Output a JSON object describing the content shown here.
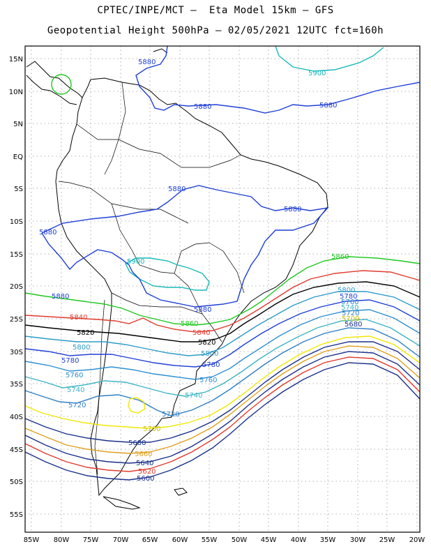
{
  "title": {
    "line1": "CPTEC/INPE/MCT –  Eta Model 15km – GFS",
    "line2": "Geopotential Height 500hPa – 02/05/2021 12UTC fct=160h"
  },
  "axes": {
    "latitude_labels": [
      "15N",
      "10N",
      "5N",
      "EQ",
      "5S",
      "10S",
      "15S",
      "20S",
      "25S",
      "30S",
      "35S",
      "40S",
      "45S",
      "50S",
      "55S"
    ],
    "longitude_labels": [
      "85W",
      "80W",
      "75W",
      "70W",
      "65W",
      "60W",
      "55W",
      "50W",
      "45W",
      "40W",
      "35W",
      "30W",
      "25W",
      "20W"
    ]
  },
  "contour_levels": {
    "5900": {
      "label": "5900",
      "color": "#1ab8b8"
    },
    "5880": {
      "label": "5880",
      "color": "#1f3fd6"
    },
    "5860": {
      "label": "5860",
      "color": "#1ec81e"
    },
    "5840": {
      "label": "5840",
      "color": "#e03a2e"
    },
    "5820": {
      "label": "5820",
      "color": "#000000"
    },
    "5800": {
      "label": "5800",
      "color": "#2c9bc7"
    },
    "5780": {
      "label": "5780",
      "color": "#1f3fd6"
    },
    "5760": {
      "label": "5760",
      "color": "#2f8fd0"
    },
    "5740": {
      "label": "5740",
      "color": "#3cb4c4"
    },
    "5720": {
      "label": "5720",
      "color": "#2f7fc4"
    },
    "5700": {
      "label": "5700",
      "color": "#f0e800"
    },
    "5680": {
      "label": "5680",
      "color": "#1a2f8a"
    },
    "5660": {
      "label": "5660",
      "color": "#e0a020"
    },
    "5640": {
      "label": "5640",
      "color": "#1a2f8a"
    },
    "5620": {
      "label": "5620",
      "color": "#e03a2e"
    },
    "5600": {
      "label": "5600",
      "color": "#1a2f8a"
    }
  }
}
